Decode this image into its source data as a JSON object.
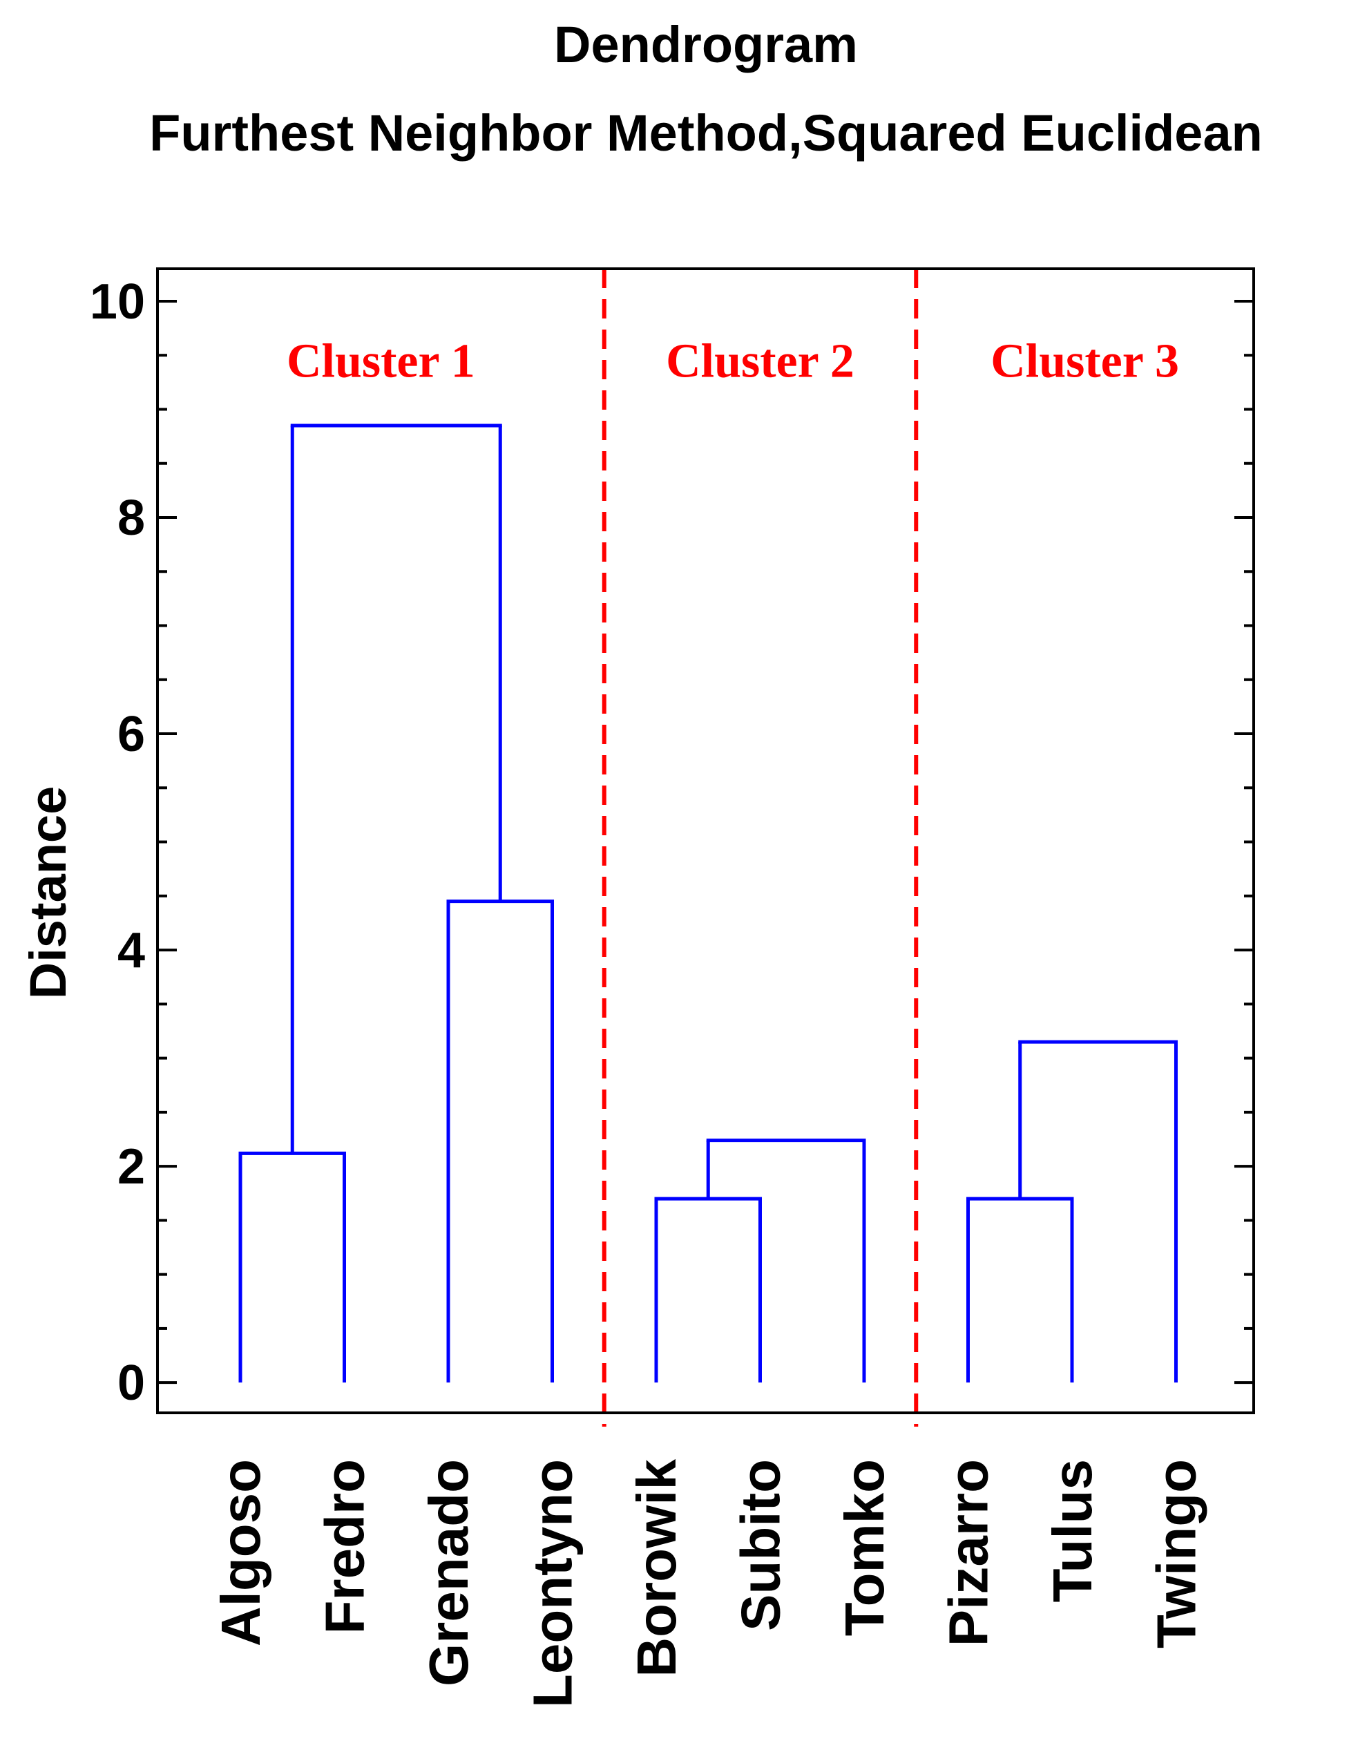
{
  "chart_data": {
    "type": "dendrogram",
    "title": "Dendrogram",
    "subtitle": "Furthest Neighbor Method,Squared Euclidean",
    "ylabel": "Distance",
    "xlabel": "",
    "ylim": [
      -0.28,
      10.3
    ],
    "yticks": [
      0,
      2,
      4,
      6,
      8,
      10
    ],
    "y_minor_step": 0.5,
    "leaves": [
      "Algoso",
      "Fredro",
      "Grenado",
      "Leontyno",
      "Borowik",
      "Subito",
      "Tomko",
      "Pizarro",
      "Tulus",
      "Twingo"
    ],
    "merges": [
      {
        "left": "Algoso",
        "right": "Fredro",
        "height": 2.12
      },
      {
        "left": "Grenado",
        "right": "Leontyno",
        "height": 4.45
      },
      {
        "left": "Algoso+Fredro",
        "right": "Grenado+Leontyno",
        "height": 8.85
      },
      {
        "left": "Borowik",
        "right": "Subito",
        "height": 1.7
      },
      {
        "left": "Borowik+Subito",
        "right": "Tomko",
        "height": 2.24
      },
      {
        "left": "Pizarro",
        "right": "Tulus",
        "height": 1.7
      },
      {
        "left": "Pizarro+Tulus",
        "right": "Twingo",
        "height": 3.15
      }
    ],
    "clusters": [
      {
        "label": "Cluster 1",
        "members": [
          "Algoso",
          "Fredro",
          "Grenado",
          "Leontyno"
        ]
      },
      {
        "label": "Cluster 2",
        "members": [
          "Borowik",
          "Subito",
          "Tomko"
        ]
      },
      {
        "label": "Cluster 3",
        "members": [
          "Pizarro",
          "Tulus",
          "Twingo"
        ]
      }
    ],
    "cluster_label_y": 9.3,
    "colors": {
      "branches": "#0000ff",
      "separators": "#ff0000",
      "cluster_labels": "#ff0000",
      "axis": "#000000"
    }
  }
}
